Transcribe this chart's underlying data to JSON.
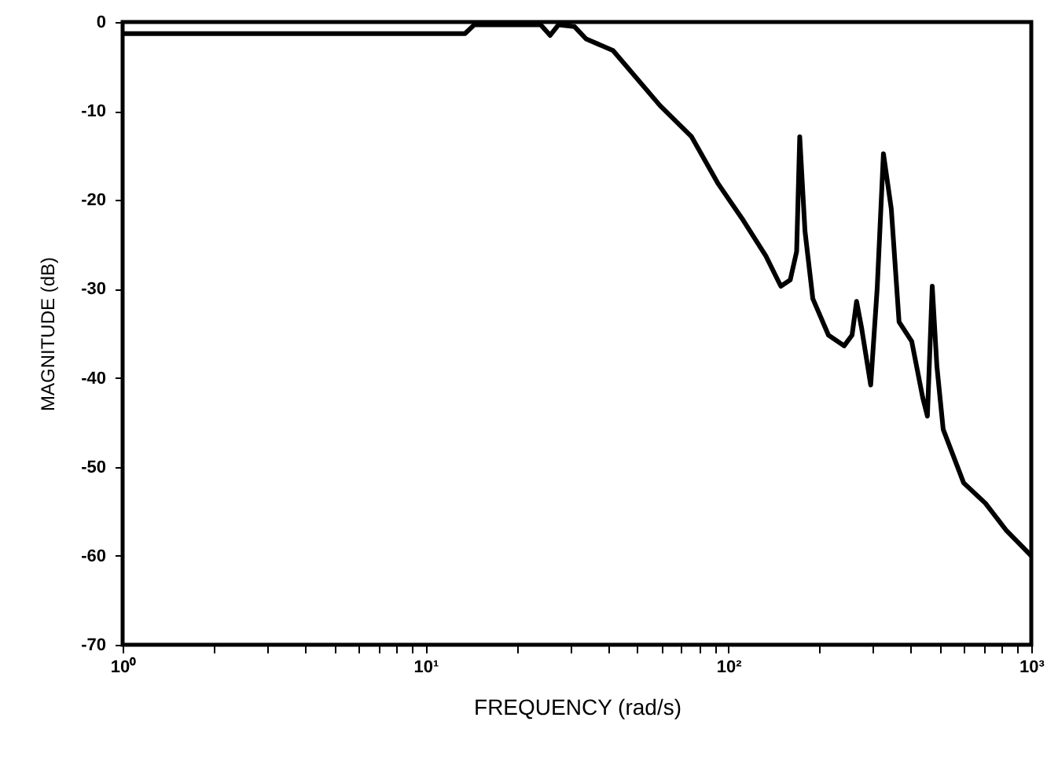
{
  "chart_data": {
    "type": "line",
    "xlabel": "FREQUENCY (rad/s)",
    "ylabel": "MAGNITUDE (dB)",
    "log": "x",
    "grid": false,
    "marker": "none",
    "line_style": "solid",
    "xlim": [
      1,
      1000
    ],
    "ylim": [
      -70,
      0
    ],
    "xticks": [
      {
        "value": 1,
        "label": "10⁰"
      },
      {
        "value": 2,
        "label": null
      },
      {
        "value": 3,
        "label": null
      },
      {
        "value": 4,
        "label": null
      },
      {
        "value": 5,
        "label": null
      },
      {
        "value": 6,
        "label": null
      },
      {
        "value": 7,
        "label": null
      },
      {
        "value": 8,
        "label": null
      },
      {
        "value": 9,
        "label": null
      },
      {
        "value": 10,
        "label": "10¹"
      },
      {
        "value": 20,
        "label": null
      },
      {
        "value": 30,
        "label": null
      },
      {
        "value": 40,
        "label": null
      },
      {
        "value": 50,
        "label": null
      },
      {
        "value": 60,
        "label": null
      },
      {
        "value": 70,
        "label": null
      },
      {
        "value": 80,
        "label": null
      },
      {
        "value": 90,
        "label": null
      },
      {
        "value": 100,
        "label": "10²"
      },
      {
        "value": 200,
        "label": null
      },
      {
        "value": 300,
        "label": null
      },
      {
        "value": 400,
        "label": null
      },
      {
        "value": 500,
        "label": null
      },
      {
        "value": 600,
        "label": null
      },
      {
        "value": 700,
        "label": null
      },
      {
        "value": 800,
        "label": null
      },
      {
        "value": 900,
        "label": null
      },
      {
        "value": 1000,
        "label": "10³"
      }
    ],
    "yticks": [
      0,
      -10,
      -20,
      -30,
      -40,
      -50,
      -60,
      -70
    ],
    "series": [
      {
        "color": "#000000",
        "x": [
          1,
          13.5,
          14.5,
          24,
          25.8,
          27.5,
          31,
          33.9,
          41.6,
          59.5,
          75.6,
          92.6,
          112,
          133,
          149,
          160,
          168,
          172,
          179,
          190,
          214,
          241,
          256,
          265,
          275,
          295,
          310,
          325,
          345,
          366,
          403,
          438,
          454,
          471,
          488,
          512,
          598,
          706,
          825,
          1000
        ],
        "values": [
          -1.3,
          -1.3,
          -0.3,
          -0.3,
          -1.5,
          -0.3,
          -0.5,
          -1.9,
          -3.2,
          -9.4,
          -12.9,
          -18.2,
          -22.3,
          -26.3,
          -29.7,
          -29.0,
          -25.8,
          -12.9,
          -23.5,
          -31.1,
          -35.2,
          -36.4,
          -35.2,
          -31.4,
          -34.3,
          -40.8,
          -29.9,
          -14.8,
          -21.0,
          -33.7,
          -35.9,
          -42.2,
          -44.3,
          -29.7,
          -38.7,
          -45.8,
          -51.8,
          -54.1,
          -57.1,
          -60.0
        ]
      }
    ]
  }
}
